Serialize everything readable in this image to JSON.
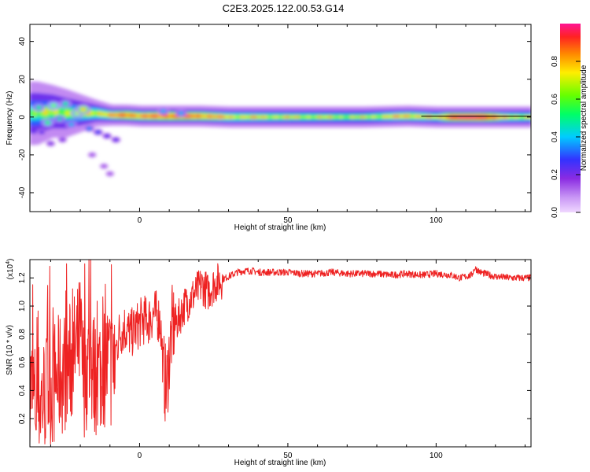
{
  "title": "C2E3.2025.122.00.53.G14",
  "colors": {
    "snr_line": "#ee2222",
    "axis": "#000000",
    "spectrogram_background": "#ffffff",
    "colormap": [
      "#f0d8ff",
      "#8a2be2",
      "#3333ff",
      "#00ccff",
      "#00ff66",
      "#99ff00",
      "#ffee00",
      "#ff8800",
      "#ff2222",
      "#ff1493"
    ]
  },
  "chart_data": [
    {
      "type": "heatmap",
      "title": "C2E3.2025.122.00.53.G14",
      "xlabel": "Height of straight line (km)",
      "ylabel": "Frequency (Hz)",
      "xlim": [
        -37,
        132
      ],
      "ylim": [
        -50,
        49
      ],
      "x_ticks": [
        0,
        50,
        100
      ],
      "y_ticks": [
        -40,
        -20,
        0,
        20,
        40
      ],
      "colorbar": {
        "label": "Normalized spectral amplitude",
        "range": [
          0.0,
          1.0
        ],
        "ticks": [
          "0.0",
          "0.2",
          "0.4",
          "0.6",
          "0.8"
        ]
      },
      "ridge": [
        {
          "x": -35,
          "f_center": 2,
          "width": 12,
          "amp": 0.35
        },
        {
          "x": -30,
          "f_center": 3,
          "width": 10,
          "amp": 0.45
        },
        {
          "x": -25,
          "f_center": 2,
          "width": 9,
          "amp": 0.45
        },
        {
          "x": -20,
          "f_center": 2,
          "width": 7,
          "amp": 0.5
        },
        {
          "x": -15,
          "f_center": 2,
          "width": 5,
          "amp": 0.55
        },
        {
          "x": -10,
          "f_center": 1,
          "width": 4,
          "amp": 0.6
        },
        {
          "x": -5,
          "f_center": 1,
          "width": 4,
          "amp": 0.75
        },
        {
          "x": 0,
          "f_center": 0.5,
          "width": 4,
          "amp": 0.65
        },
        {
          "x": 10,
          "f_center": 0.5,
          "width": 4,
          "amp": 0.75
        },
        {
          "x": 20,
          "f_center": 0.5,
          "width": 4,
          "amp": 0.7
        },
        {
          "x": 30,
          "f_center": 0,
          "width": 4,
          "amp": 0.55
        },
        {
          "x": 50,
          "f_center": 0,
          "width": 4,
          "amp": 0.5
        },
        {
          "x": 75,
          "f_center": 0,
          "width": 4,
          "amp": 0.45
        },
        {
          "x": 90,
          "f_center": 0.5,
          "width": 4,
          "amp": 0.6
        },
        {
          "x": 100,
          "f_center": 0,
          "width": 4,
          "amp": 0.5
        },
        {
          "x": 105,
          "f_center": 0,
          "width": 4,
          "amp": 0.85
        },
        {
          "x": 115,
          "f_center": 0,
          "width": 4,
          "amp": 0.9
        },
        {
          "x": 122,
          "f_center": 0,
          "width": 4,
          "amp": 0.55
        },
        {
          "x": 132,
          "f_center": 0,
          "width": 4,
          "amp": 0.5
        }
      ],
      "blobs": [
        {
          "x": -34,
          "f": 5,
          "amp": 0.45
        },
        {
          "x": -31,
          "f": -3,
          "amp": 0.5
        },
        {
          "x": -29,
          "f": 6,
          "amp": 0.55
        },
        {
          "x": -27,
          "f": -1,
          "amp": 0.4
        },
        {
          "x": -25,
          "f": 7,
          "amp": 0.45
        },
        {
          "x": -23,
          "f": -4,
          "amp": 0.35
        },
        {
          "x": -21,
          "f": 2,
          "amp": 0.6
        },
        {
          "x": -19,
          "f": 4,
          "amp": 0.7
        },
        {
          "x": -17,
          "f": -6,
          "amp": 0.3
        },
        {
          "x": -14,
          "f": -8,
          "amp": 0.25
        },
        {
          "x": -11,
          "f": -10,
          "amp": 0.2
        },
        {
          "x": -8,
          "f": -12,
          "amp": 0.2
        },
        {
          "x": -33,
          "f": -8,
          "amp": 0.2
        },
        {
          "x": -30,
          "f": -14,
          "amp": 0.15
        },
        {
          "x": -26,
          "f": -12,
          "amp": 0.15
        },
        {
          "x": -16,
          "f": -20,
          "amp": 0.1
        },
        {
          "x": -10,
          "f": -30,
          "amp": 0.1
        },
        {
          "x": -12,
          "f": -26,
          "amp": 0.1
        },
        {
          "x": 8,
          "f": 3,
          "amp": 0.35
        },
        {
          "x": 14,
          "f": 2,
          "amp": 0.35
        }
      ]
    },
    {
      "type": "line",
      "xlabel": "Height of straight line (km)",
      "ylabel": "SNR (10 * v/v)",
      "y_multiplier": "(x10^4)",
      "xlim": [
        -37,
        132
      ],
      "ylim": [
        0.0,
        1.33
      ],
      "x_ticks": [
        0,
        50,
        100
      ],
      "y_ticks": [
        "0.2",
        "0.4",
        "0.6",
        "0.8",
        "1.0",
        "1.2"
      ],
      "series": [
        {
          "x": [
            -37,
            -35,
            -33,
            -31,
            -29,
            -27,
            -25,
            -23,
            -21,
            -20,
            -19,
            -17,
            -15,
            -13,
            -11,
            -9,
            -7,
            -5,
            -3,
            -1,
            1,
            3,
            5,
            7,
            8,
            9,
            10,
            11,
            13,
            15,
            17,
            19,
            21,
            23,
            25,
            27,
            29,
            31,
            33,
            35,
            38,
            40,
            45,
            50,
            55,
            60,
            65,
            70,
            75,
            80,
            85,
            90,
            95,
            100,
            105,
            108,
            110,
            112,
            113,
            115,
            118,
            120,
            125,
            132
          ],
          "y": [
            0.45,
            0.3,
            0.35,
            0.4,
            0.45,
            0.5,
            0.55,
            0.6,
            0.7,
            0.8,
            0.5,
            0.6,
            0.5,
            0.55,
            0.6,
            0.55,
            0.8,
            0.85,
            0.8,
            0.85,
            0.9,
            0.9,
            0.95,
            0.9,
            0.55,
            0.4,
            0.65,
            0.85,
            0.9,
            1.0,
            1.05,
            1.1,
            1.15,
            1.1,
            1.15,
            1.18,
            1.2,
            1.22,
            1.24,
            1.25,
            1.25,
            1.24,
            1.24,
            1.24,
            1.23,
            1.23,
            1.24,
            1.23,
            1.23,
            1.23,
            1.22,
            1.23,
            1.22,
            1.23,
            1.22,
            1.2,
            1.21,
            1.22,
            1.27,
            1.24,
            1.22,
            1.21,
            1.2,
            1.2
          ]
        }
      ]
    }
  ]
}
